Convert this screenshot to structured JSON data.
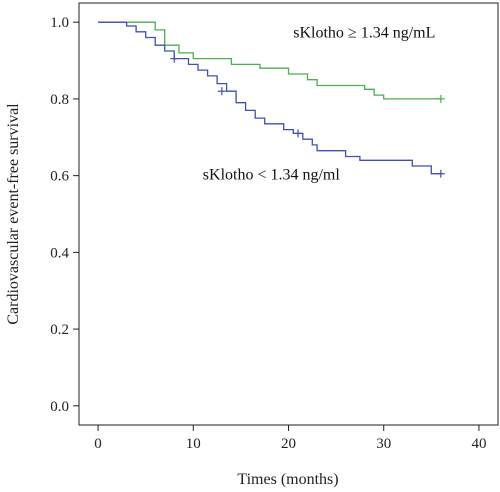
{
  "chart_data": {
    "type": "line",
    "subtype": "kaplan-meier step",
    "title": "",
    "xlabel": "Times (months)",
    "ylabel": "Cardiovascular event-free survival",
    "xlim": [
      -2,
      42
    ],
    "ylim": [
      -0.05,
      1.05
    ],
    "xticks": [
      0,
      10,
      20,
      30,
      40
    ],
    "yticks": [
      0.0,
      0.2,
      0.4,
      0.6,
      0.8,
      1.0
    ],
    "xtick_labels": [
      "0",
      "10",
      "20",
      "30",
      "40"
    ],
    "ytick_labels": [
      "0.0",
      "0.2",
      "0.4",
      "0.6",
      "0.8",
      "1.0"
    ],
    "grid": false,
    "series": [
      {
        "color": "#4caf50",
        "points": [
          [
            0,
            1.0
          ],
          [
            6,
            1.0
          ],
          [
            6,
            0.98
          ],
          [
            7,
            0.98
          ],
          [
            7,
            0.94
          ],
          [
            8.5,
            0.94
          ],
          [
            8.5,
            0.92
          ],
          [
            10,
            0.92
          ],
          [
            10,
            0.905
          ],
          [
            14,
            0.905
          ],
          [
            14,
            0.89
          ],
          [
            17,
            0.89
          ],
          [
            17,
            0.88
          ],
          [
            20,
            0.88
          ],
          [
            20,
            0.865
          ],
          [
            22,
            0.865
          ],
          [
            22,
            0.85
          ],
          [
            23,
            0.85
          ],
          [
            23,
            0.835
          ],
          [
            28,
            0.835
          ],
          [
            28,
            0.825
          ],
          [
            29,
            0.825
          ],
          [
            29,
            0.81
          ],
          [
            30,
            0.81
          ],
          [
            30,
            0.8
          ],
          [
            36,
            0.8
          ]
        ],
        "censored": [
          [
            36,
            0.8
          ]
        ]
      },
      {
        "color": "#3f51b5",
        "points": [
          [
            0,
            1.0
          ],
          [
            3,
            1.0
          ],
          [
            3,
            0.99
          ],
          [
            4,
            0.99
          ],
          [
            4,
            0.975
          ],
          [
            5,
            0.975
          ],
          [
            5,
            0.96
          ],
          [
            6,
            0.96
          ],
          [
            6,
            0.94
          ],
          [
            7,
            0.94
          ],
          [
            7,
            0.925
          ],
          [
            8,
            0.925
          ],
          [
            8,
            0.905
          ],
          [
            9.5,
            0.905
          ],
          [
            9.5,
            0.89
          ],
          [
            10.5,
            0.89
          ],
          [
            10.5,
            0.875
          ],
          [
            11.5,
            0.875
          ],
          [
            11.5,
            0.86
          ],
          [
            12.5,
            0.86
          ],
          [
            12.5,
            0.84
          ],
          [
            13.5,
            0.84
          ],
          [
            13.5,
            0.82
          ],
          [
            14.5,
            0.82
          ],
          [
            14.5,
            0.79
          ],
          [
            15.5,
            0.79
          ],
          [
            15.5,
            0.77
          ],
          [
            16.5,
            0.77
          ],
          [
            16.5,
            0.75
          ],
          [
            17.5,
            0.75
          ],
          [
            17.5,
            0.735
          ],
          [
            19.5,
            0.735
          ],
          [
            19.5,
            0.72
          ],
          [
            20.5,
            0.72
          ],
          [
            20.5,
            0.71
          ],
          [
            21.5,
            0.71
          ],
          [
            21.5,
            0.695
          ],
          [
            22.5,
            0.695
          ],
          [
            22.5,
            0.68
          ],
          [
            23,
            0.68
          ],
          [
            23,
            0.665
          ],
          [
            26,
            0.665
          ],
          [
            26,
            0.65
          ],
          [
            27.5,
            0.65
          ],
          [
            27.5,
            0.64
          ],
          [
            33,
            0.64
          ],
          [
            33,
            0.625
          ],
          [
            35,
            0.625
          ],
          [
            35,
            0.605
          ],
          [
            36,
            0.605
          ]
        ],
        "censored": [
          [
            8,
            0.905
          ],
          [
            13,
            0.82
          ],
          [
            21,
            0.71
          ],
          [
            36,
            0.605
          ]
        ]
      }
    ],
    "annotations": [
      {
        "text": "sKlotho ≥ 1.34 ng/mL",
        "x": 20.5,
        "y": 0.96
      },
      {
        "text": "sKlotho < 1.34 ng/ml",
        "x": 11,
        "y": 0.59
      }
    ]
  }
}
